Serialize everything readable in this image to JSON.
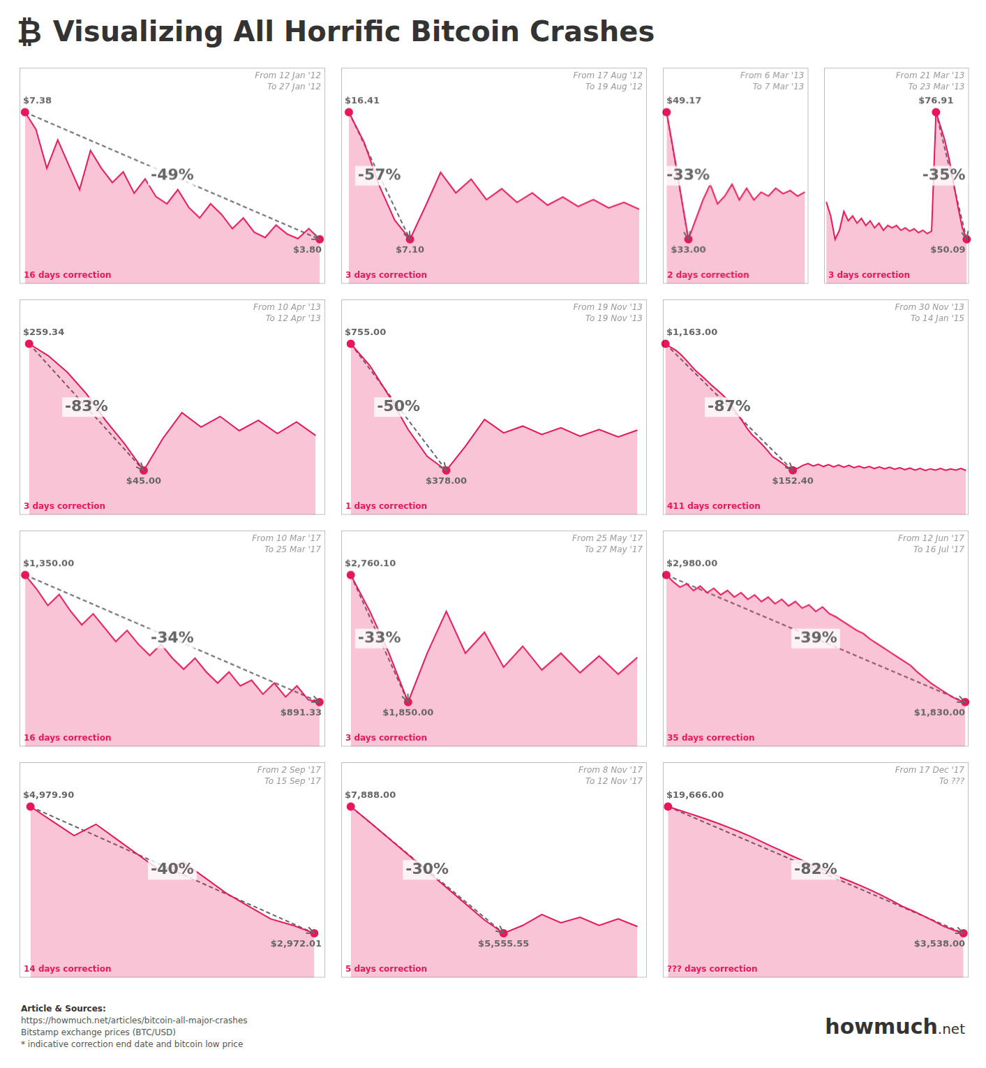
{
  "title": "Visualizing All Horrific Bitcoin Crashes",
  "annotations": [
    "₿",
    "Article & Sources:",
    "https://howmuch.net/articles/bitcoin-all-major-crashes",
    "Bitstamp exchange prices (BTC/USD)",
    "* indicative correction end date and bitcoin low price",
    "how",
    "much",
    ".net"
  ],
  "chart_data": [
    {
      "type": "line",
      "color": "#e8175a",
      "grid": false,
      "tick_labels": false,
      "values": [
        7.38,
        6.9,
        5.8,
        6.6,
        5.9,
        5.2,
        6.3,
        5.8,
        5.4,
        5.7,
        5.1,
        5.5,
        5.0,
        4.8,
        5.2,
        4.7,
        4.4,
        4.8,
        4.5,
        4.1,
        4.4,
        4.0,
        3.85,
        4.2,
        3.95,
        3.82,
        4.1,
        3.8
      ],
      "ylim": [
        2.547,
        8.633
      ],
      "start_index": 0,
      "end_index": 27,
      "point_labels": [
        {
          "index": 0,
          "label": "$7.38"
        },
        {
          "index": 27,
          "label": "$3.80"
        }
      ],
      "annotations": [
        "From 12 Jan '12",
        "To 27 Jan '12",
        "-49%",
        "16 days correction"
      ]
    },
    {
      "type": "line",
      "color": "#e8175a",
      "grid": false,
      "tick_labels": false,
      "values": [
        16.41,
        14.2,
        11.0,
        8.5,
        7.1,
        9.5,
        12.0,
        10.5,
        11.5,
        10.0,
        10.8,
        9.8,
        10.5,
        9.6,
        10.2,
        9.5,
        10.0,
        9.4,
        9.8,
        9.3
      ],
      "ylim": [
        3.8415,
        19.6685
      ],
      "start_index": 0,
      "end_index": 4,
      "point_labels": [
        {
          "index": 0,
          "label": "$16.41"
        },
        {
          "index": 4,
          "label": "$7.10"
        }
      ],
      "annotations": [
        "From 17 Aug '12",
        "To 19 Aug '12",
        "-57%",
        "3 days correction"
      ]
    },
    {
      "type": "line",
      "color": "#e8175a",
      "grid": false,
      "tick_labels": false,
      "values": [
        49.17,
        44.0,
        38.5,
        33.0,
        35.5,
        38.0,
        40.0,
        37.5,
        38.5,
        40.0,
        38.0,
        39.5,
        38.0,
        39.0,
        38.5,
        39.5,
        38.8,
        39.2,
        38.5,
        39.0
      ],
      "ylim": [
        27.3405,
        54.8295
      ],
      "start_index": 0,
      "end_index": 3,
      "point_labels": [
        {
          "index": 0,
          "label": "$49.17"
        },
        {
          "index": 3,
          "label": "$33.00"
        }
      ],
      "annotations": [
        "From 6 Mar '13",
        "To 7 Mar '13",
        "-33%",
        "2 days correction"
      ]
    },
    {
      "type": "line",
      "color": "#e8175a",
      "grid": false,
      "tick_labels": false,
      "values": [
        58.0,
        55.0,
        50.09,
        52.0,
        56.0,
        54.0,
        55.0,
        53.5,
        54.5,
        53.0,
        54.0,
        52.5,
        53.5,
        52.0,
        53.0,
        52.5,
        53.0,
        52.0,
        52.5,
        51.8,
        52.3,
        51.5,
        52.0,
        51.3,
        51.8,
        76.91,
        74.0,
        71.0,
        67.0,
        62.0,
        57.0,
        52.5,
        50.09
      ],
      "ylim": [
        40.703,
        86.297
      ],
      "start_index": 25,
      "end_index": 32,
      "point_labels": [
        {
          "index": 25,
          "label": "$76.91"
        },
        {
          "index": 32,
          "label": "$50.09"
        }
      ],
      "annotations": [
        "From 21 Mar '13",
        "To 23 Mar '13",
        "-35%",
        "3 days correction"
      ]
    },
    {
      "type": "line",
      "color": "#e8175a",
      "grid": false,
      "tick_labels": false,
      "log": "y",
      "values": [
        259.34,
        220.0,
        175.0,
        130.0,
        90.0,
        65.0,
        45.0,
        70.0,
        100.0,
        82.0,
        95.0,
        78.0,
        90.0,
        75.0,
        88.0,
        73.0
      ],
      "ylim": [
        24.377,
        478.74
      ],
      "start_index": 0,
      "end_index": 6,
      "point_labels": [
        {
          "index": 0,
          "label": "$259.34"
        },
        {
          "index": 6,
          "label": "$45.00"
        }
      ],
      "annotations": [
        "From 10 Apr '13",
        "To 12 Apr '13",
        "-83%",
        "3 days correction"
      ]
    },
    {
      "type": "line",
      "color": "#e8175a",
      "grid": false,
      "tick_labels": false,
      "values": [
        755.0,
        690.0,
        600.0,
        500.0,
        420.0,
        378.0,
        450.0,
        530.0,
        490.0,
        510.0,
        485.0,
        505.0,
        480.0,
        500.0,
        478.0,
        498.0
      ],
      "ylim": [
        246.05,
        886.95
      ],
      "start_index": 0,
      "end_index": 5,
      "point_labels": [
        {
          "index": 0,
          "label": "$755.00"
        },
        {
          "index": 5,
          "label": "$378.00"
        }
      ],
      "annotations": [
        "From 19 Nov '13",
        "To 19 Nov '13",
        "-50%",
        "1 days correction"
      ]
    },
    {
      "type": "line",
      "color": "#e8175a",
      "grid": false,
      "tick_labels": false,
      "log": "y",
      "values": [
        1163.0,
        1100.0,
        1050.0,
        980.0,
        900.0,
        820.0,
        750.0,
        700.0,
        650.0,
        600.0,
        560.0,
        520.0,
        480.0,
        430.0,
        380.0,
        340.0,
        300.0,
        270.0,
        250.0,
        230.0,
        210.0,
        190.0,
        180.0,
        170.0,
        160.0,
        152.4,
        158.0,
        165.0,
        170.0,
        163.0,
        168.0,
        162.0,
        167.0,
        161.0,
        166.0,
        160.0,
        165.0,
        159.0,
        163.0,
        158.0,
        162.0,
        157.0,
        161.0,
        156.0,
        160.0,
        155.0,
        159.0,
        154.0,
        158.0,
        153.0,
        157.0,
        152.0,
        156.0,
        153.0,
        157.0,
        152.5,
        156.0,
        153.0,
        157.0,
        152.0
      ],
      "ylim": [
        74.566,
        2370.76
      ],
      "start_index": 0,
      "end_index": 25,
      "point_labels": [
        {
          "index": 0,
          "label": "$1,163.00"
        },
        {
          "index": 25,
          "label": "$152.40"
        }
      ],
      "annotations": [
        "From 30 Nov '13",
        "To 14 Jan '15",
        "-87%",
        "411 days correction"
      ]
    },
    {
      "type": "line",
      "color": "#e8175a",
      "grid": false,
      "tick_labels": false,
      "values": [
        1350.0,
        1300.0,
        1240.0,
        1280.0,
        1220.0,
        1170.0,
        1210.0,
        1160.0,
        1110.0,
        1150.0,
        1100.0,
        1060.0,
        1100.0,
        1050.0,
        1010.0,
        1050.0,
        1000.0,
        960.0,
        1000.0,
        950.0,
        970.0,
        920.0,
        960.0,
        910.0,
        950.0,
        900.0,
        891.33
      ],
      "ylim": [
        730.7955,
        1510.5345
      ],
      "start_index": 0,
      "end_index": 26,
      "point_labels": [
        {
          "index": 0,
          "label": "$1,350.00"
        },
        {
          "index": 26,
          "label": "$891.33"
        }
      ],
      "annotations": [
        "From 10 Mar '17",
        "To 25 Mar '17",
        "-34%",
        "16 days correction"
      ]
    },
    {
      "type": "line",
      "color": "#e8175a",
      "grid": false,
      "tick_labels": false,
      "values": [
        2760.1,
        2500.0,
        2200.0,
        1850.0,
        2200.0,
        2500.0,
        2200.0,
        2350.0,
        2100.0,
        2250.0,
        2080.0,
        2200.0,
        2060.0,
        2180.0,
        2050.0,
        2170.0
      ],
      "ylim": [
        1531.465,
        3078.635
      ],
      "start_index": 0,
      "end_index": 3,
      "point_labels": [
        {
          "index": 0,
          "label": "$2,760.10"
        },
        {
          "index": 3,
          "label": "$1,850.00"
        }
      ],
      "annotations": [
        "From 25 May '17",
        "To 27 May '17",
        "-33%",
        "3 days correction"
      ]
    },
    {
      "type": "line",
      "color": "#e8175a",
      "grid": false,
      "tick_labels": false,
      "values": [
        2980.0,
        2920.0,
        2870.0,
        2900.0,
        2840.0,
        2880.0,
        2820.0,
        2860.0,
        2800.0,
        2840.0,
        2780.0,
        2820.0,
        2760.0,
        2800.0,
        2740.0,
        2780.0,
        2720.0,
        2760.0,
        2700.0,
        2740.0,
        2680.0,
        2710.0,
        2650.0,
        2690.0,
        2630.0,
        2600.0,
        2560.0,
        2520.0,
        2480.0,
        2450.0,
        2400.0,
        2360.0,
        2320.0,
        2280.0,
        2240.0,
        2200.0,
        2160.0,
        2100.0,
        2050.0,
        2000.0,
        1960.0,
        1920.0,
        1880.0,
        1850.0,
        1830.0
      ],
      "ylim": [
        1427.5,
        3382.5
      ],
      "start_index": 0,
      "end_index": 44,
      "point_labels": [
        {
          "index": 0,
          "label": "$2,980.00"
        },
        {
          "index": 44,
          "label": "$1,830.00"
        }
      ],
      "annotations": [
        "From 12 Jun '17",
        "To 16 Jul '17",
        "-39%",
        "35 days correction"
      ]
    },
    {
      "type": "line",
      "color": "#e8175a",
      "grid": false,
      "tick_labels": false,
      "values": [
        4979.9,
        4750.0,
        4520.0,
        4700.0,
        4450.0,
        4200.0,
        3950.0,
        4100.0,
        3850.0,
        3600.0,
        3400.0,
        3200.0,
        3100.0,
        2972.01
      ],
      "ylim": [
        2269.2485,
        5682.6615
      ],
      "start_index": 0,
      "end_index": 13,
      "point_labels": [
        {
          "index": 0,
          "label": "$4,979.90"
        },
        {
          "index": 13,
          "label": "$2,972.01"
        }
      ],
      "annotations": [
        "From 2 Sep '17",
        "To 15 Sep '17",
        "-40%",
        "14 days correction"
      ]
    },
    {
      "type": "line",
      "color": "#e8175a",
      "grid": false,
      "tick_labels": false,
      "values": [
        7888.0,
        7600.0,
        7300.0,
        7000.0,
        6700.0,
        6400.0,
        6100.0,
        5800.0,
        5555.55,
        5700.0,
        5900.0,
        5750.0,
        5850.0,
        5700.0,
        5820.0,
        5680.0
      ],
      "ylim": [
        4739.1925,
        8704.3575
      ],
      "start_index": 0,
      "end_index": 8,
      "point_labels": [
        {
          "index": 0,
          "label": "$7,888.00"
        },
        {
          "index": 8,
          "label": "$5,555.55"
        }
      ],
      "annotations": [
        "From 8 Nov '17",
        "To 12 Nov '17",
        "-30%",
        "5 days correction"
      ]
    },
    {
      "type": "line",
      "color": "#e8175a",
      "grid": false,
      "tick_labels": false,
      "log": "y",
      "values": [
        19666.0,
        18800.0,
        18000.0,
        17200.0,
        16400.0,
        15600.0,
        14800.0,
        14000.0,
        13200.0,
        12400.0,
        11600.0,
        10900.0,
        10200.0,
        9600.0,
        9000.0,
        8500.0,
        8000.0,
        7500.0,
        7100.0,
        6700.0,
        6300.0,
        5900.0,
        5500.0,
        5100.0,
        4800.0,
        4500.0,
        4200.0,
        3900.0,
        3700.0,
        3538.0
      ],
      "ylim": [
        1940.98,
        35846.9
      ],
      "start_index": 0,
      "end_index": 29,
      "point_labels": [
        {
          "index": 0,
          "label": "$19,666.00"
        },
        {
          "index": 29,
          "label": "$3,538.00"
        }
      ],
      "annotations": [
        "From 17 Dec '17",
        "To ???",
        "-82%",
        "??? days correction"
      ]
    }
  ]
}
